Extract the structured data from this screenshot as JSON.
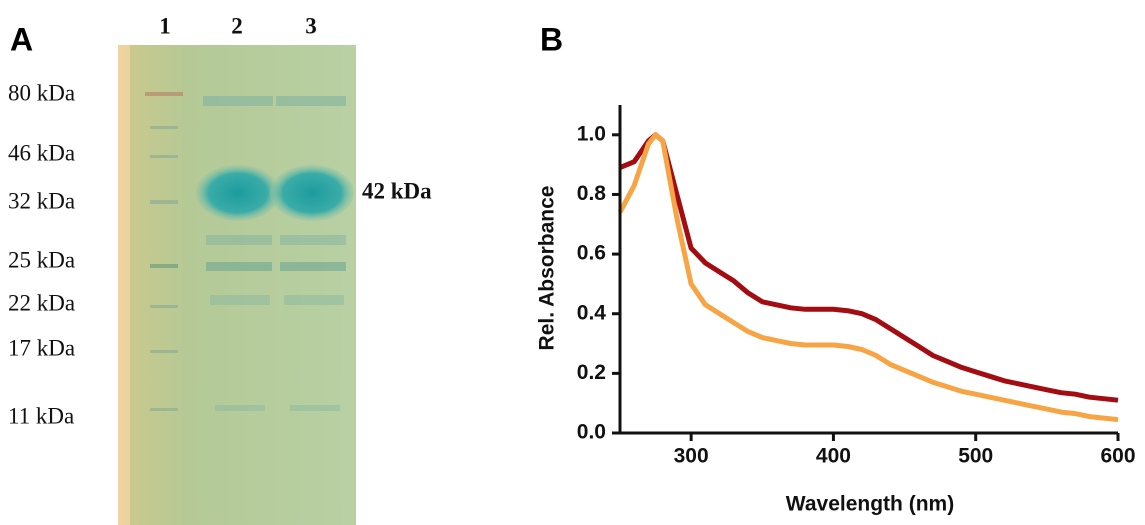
{
  "panel_a": {
    "label": "A",
    "lanes": [
      "1",
      "2",
      "3"
    ],
    "markers": [
      "80 kDa",
      "46 kDa",
      "32 kDa",
      "25 kDa",
      "22 kDa",
      "17 kDa",
      "11 kDa"
    ],
    "band_label": "42 kDa"
  },
  "chart_data": {
    "type": "line",
    "panel_label": "B",
    "x_label": "Wavelength (nm)",
    "y_label": "Rel. Absorbance",
    "x": [
      250,
      260,
      270,
      275,
      280,
      290,
      300,
      310,
      320,
      330,
      340,
      350,
      360,
      370,
      380,
      390,
      400,
      410,
      420,
      430,
      440,
      450,
      460,
      470,
      480,
      490,
      500,
      510,
      520,
      530,
      540,
      550,
      560,
      570,
      580,
      590,
      600
    ],
    "series": [
      {
        "color": "#a30d12",
        "values": [
          0.89,
          0.91,
          0.98,
          1.0,
          0.98,
          0.8,
          0.62,
          0.57,
          0.54,
          0.51,
          0.47,
          0.44,
          0.43,
          0.42,
          0.415,
          0.415,
          0.415,
          0.41,
          0.4,
          0.38,
          0.35,
          0.32,
          0.29,
          0.26,
          0.24,
          0.22,
          0.205,
          0.19,
          0.175,
          0.165,
          0.155,
          0.145,
          0.135,
          0.13,
          0.12,
          0.115,
          0.11
        ]
      },
      {
        "color": "#f7a444",
        "values": [
          0.74,
          0.83,
          0.97,
          1.0,
          0.98,
          0.72,
          0.5,
          0.43,
          0.4,
          0.37,
          0.34,
          0.32,
          0.31,
          0.3,
          0.295,
          0.295,
          0.295,
          0.29,
          0.28,
          0.26,
          0.23,
          0.21,
          0.19,
          0.17,
          0.155,
          0.14,
          0.13,
          0.12,
          0.11,
          0.1,
          0.09,
          0.08,
          0.07,
          0.065,
          0.055,
          0.05,
          0.045
        ]
      }
    ],
    "xlim": [
      250,
      600
    ],
    "xticks": [
      300,
      400,
      500,
      600
    ],
    "ylim": [
      0,
      1.1
    ],
    "yticks": [
      {
        "value": 0,
        "label": "0.0"
      },
      0.2,
      0.4,
      0.6,
      0.8,
      {
        "value": 1,
        "label": "1.0"
      }
    ]
  }
}
